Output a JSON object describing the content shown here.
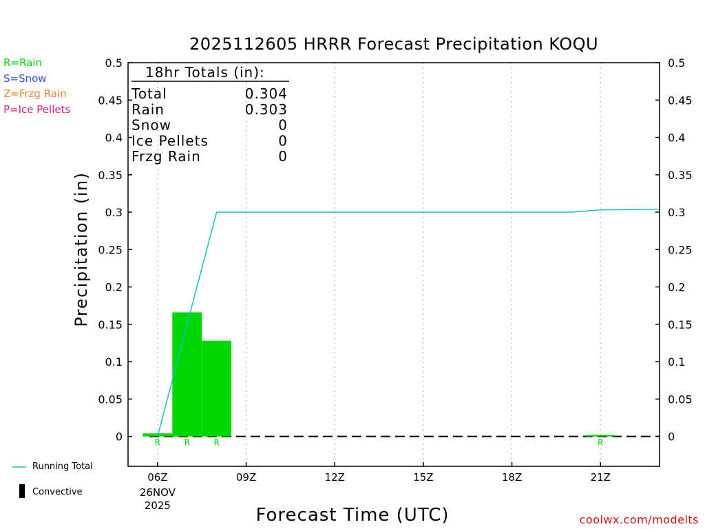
{
  "colors": {
    "rain": "#00d600",
    "snow": "#3050e0",
    "frzg_rain": "#f08030",
    "ice_pellets": "#e0208a",
    "running_total": "#17c0c0",
    "credit": "#d11010"
  },
  "legend_top": {
    "rain": "R=Rain",
    "snow": "S=Snow",
    "frzg_rain": "Z=Frzg Rain",
    "ice_pellets": "P=Ice Pellets"
  },
  "legend_bottom": {
    "running_total": "Running Total",
    "convective": "Convective"
  },
  "credit": "coolwx.com/modelts",
  "totals_box": {
    "header": "18hr Totals (in):",
    "rows": [
      {
        "label": "Total",
        "value": "0.304"
      },
      {
        "label": "Rain",
        "value": "0.303"
      },
      {
        "label": "Snow",
        "value": "0"
      },
      {
        "label": "Ice Pellets",
        "value": "0"
      },
      {
        "label": "Frzg Rain",
        "value": "0"
      }
    ]
  },
  "chart_data": {
    "type": "bar",
    "title": "2025112605 HRRR Forecast Precipitation KOQU",
    "xlabel": "Forecast Time (UTC)",
    "ylabel": "Precipitation (in)",
    "ylim": [
      -0.04,
      0.5
    ],
    "xlim_hours": [
      5.0,
      23.0
    ],
    "grid": "vertical dotted at x ticks",
    "y_ticks": [
      0,
      0.05,
      0.1,
      0.15,
      0.2,
      0.25,
      0.3,
      0.35,
      0.4,
      0.45,
      0.5
    ],
    "y_tick_labels": [
      "0",
      "0.05",
      "0.1",
      "0.15",
      "0.2",
      "0.25",
      "0.3",
      "0.35",
      "0.4",
      "0.45",
      "0.5"
    ],
    "x_ticks": [
      {
        "hour": 6,
        "label": "06Z",
        "sublabels": [
          "26NOV",
          "2025"
        ]
      },
      {
        "hour": 9,
        "label": "09Z",
        "sublabels": []
      },
      {
        "hour": 12,
        "label": "12Z",
        "sublabels": []
      },
      {
        "hour": 15,
        "label": "15Z",
        "sublabels": []
      },
      {
        "hour": 18,
        "label": "18Z",
        "sublabels": []
      },
      {
        "hour": 21,
        "label": "21Z",
        "sublabels": []
      }
    ],
    "series": [
      {
        "name": "Hourly Precipitation",
        "kind": "bar",
        "bars": [
          {
            "hour": 6,
            "value": 0.004,
            "type_label": "R"
          },
          {
            "hour": 7,
            "value": 0.166,
            "type_label": "R"
          },
          {
            "hour": 8,
            "value": 0.128,
            "type_label": "R"
          },
          {
            "hour": 21,
            "value": 0.002,
            "type_label": "R"
          }
        ]
      },
      {
        "name": "Running Total",
        "kind": "line",
        "x": [
          6,
          8,
          20,
          21,
          23
        ],
        "y": [
          0.0,
          0.3,
          0.3,
          0.303,
          0.304
        ]
      },
      {
        "name": "Convective",
        "kind": "bar",
        "x": [
          6,
          7,
          8,
          9,
          10,
          11,
          12,
          13,
          14,
          15,
          16,
          17,
          18,
          19,
          20,
          21,
          22
        ],
        "y": [
          0,
          0,
          0,
          0,
          0,
          0,
          0,
          0,
          0,
          0,
          0,
          0,
          0,
          0,
          0,
          0,
          0
        ]
      }
    ]
  }
}
